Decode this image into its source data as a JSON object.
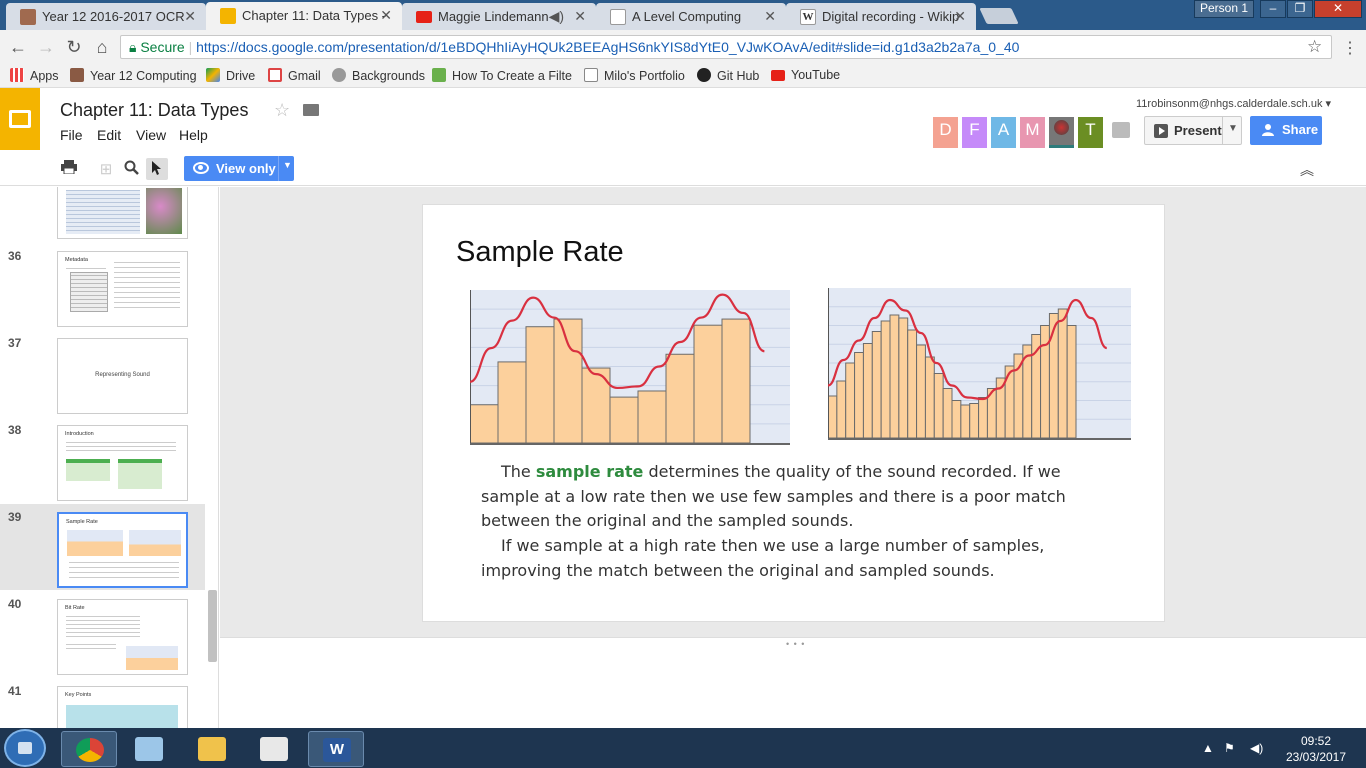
{
  "browser": {
    "tabs": [
      {
        "label": "Year 12 2016-2017 OCR",
        "color": "#a06a4f"
      },
      {
        "label": "Chapter 11: Data Types -",
        "color": "#f4b400",
        "active": true
      },
      {
        "label": "Maggie Lindemann -",
        "color": "#e62117"
      },
      {
        "label": "A Level Computing",
        "color": "#cccccc"
      },
      {
        "label": "Digital recording - Wikip",
        "color": "#ffffff"
      }
    ],
    "profile": "Person 1",
    "url_secure": "Secure",
    "url": "https://docs.google.com/presentation/d/1eBDQHhIiAyHQUk2BEEAgHS6nkYIS8dYtE0_VJwKOAvA/edit#slide=id.g1d3a2b2a7a_0_40",
    "bookmarks": [
      {
        "label": "Apps",
        "icon": "apps-grid-icon"
      },
      {
        "label": "Year 12 Computing",
        "icon": "person-icon"
      },
      {
        "label": "Drive",
        "icon": "drive-icon"
      },
      {
        "label": "Gmail",
        "icon": "gmail-icon"
      },
      {
        "label": "Backgrounds",
        "icon": "globe-icon"
      },
      {
        "label": "How To Create a Filte",
        "icon": "page-icon"
      },
      {
        "label": "Milo's Portfolio",
        "icon": "doc-icon"
      },
      {
        "label": "Git Hub",
        "icon": "github-icon"
      },
      {
        "label": "YouTube",
        "icon": "youtube-icon"
      }
    ]
  },
  "app": {
    "title": "Chapter 11:  Data Types",
    "menus": [
      "File",
      "Edit",
      "View",
      "Help"
    ],
    "user_email": "11robinsonm@nhgs.calderdale.sch.uk",
    "avatars": [
      {
        "letter": "D",
        "color": "#f4a291",
        "underline": "#f4a291"
      },
      {
        "letter": "F",
        "color": "#c58af9",
        "underline": "#c58af9"
      },
      {
        "letter": "A",
        "color": "#6fb8e6",
        "underline": "#6fb8e6"
      },
      {
        "letter": "M",
        "color": "#e896b0",
        "underline": "#e896b0"
      },
      {
        "letter": "",
        "color": "#777777",
        "underline": "#2e7c7c"
      },
      {
        "letter": "T",
        "color": "#6b8e23",
        "underline": "#6b8e23"
      }
    ],
    "present_label": "Present",
    "share_label": "Share",
    "view_only_label": "View only"
  },
  "filmstrip": [
    {
      "num": "",
      "title": "",
      "kind": "images"
    },
    {
      "num": "36",
      "title": "Metadata",
      "kind": "text"
    },
    {
      "num": "37",
      "title": "Representing Sound",
      "kind": "center"
    },
    {
      "num": "38",
      "title": "Introduction",
      "kind": "text"
    },
    {
      "num": "39",
      "title": "Sample Rate",
      "kind": "selected"
    },
    {
      "num": "40",
      "title": "Bit Rate",
      "kind": "text"
    },
    {
      "num": "41",
      "title": "Key Points",
      "kind": "text"
    }
  ],
  "slide": {
    "title": "Sample Rate",
    "paragraph_lines": [
      {
        "before": "The ",
        "bold": "sample rate",
        "after": " determines the quality of the sound recorded. If we",
        "indent": true
      },
      {
        "before": "sample at a low rate then we use few samples and there is a poor match",
        "bold": "",
        "after": "",
        "indent": false
      },
      {
        "before": "between the original and the sampled sounds.",
        "bold": "",
        "after": "",
        "indent": false
      },
      {
        "before": "If we sample at a high rate then we use a large number of samples,",
        "bold": "",
        "after": "",
        "indent": true
      },
      {
        "before": "improving the match between the original and sampled sounds.",
        "bold": "",
        "after": "",
        "indent": false
      }
    ]
  },
  "chart_data": [
    {
      "type": "bar",
      "values": [
        0.25,
        0.53,
        0.76,
        0.81,
        0.49,
        0.3,
        0.34,
        0.58,
        0.77,
        0.81
      ],
      "curve": [
        0.4,
        0.62,
        0.8,
        0.95,
        0.82,
        0.6,
        0.45,
        0.36,
        0.37,
        0.5,
        0.66,
        0.82,
        0.97,
        0.85,
        0.6
      ],
      "ylim": [
        0,
        1
      ],
      "bar_color": "#fcd09c",
      "curve_color": "#d93040"
    },
    {
      "type": "bar",
      "values": [
        0.28,
        0.38,
        0.5,
        0.57,
        0.63,
        0.71,
        0.78,
        0.82,
        0.8,
        0.72,
        0.62,
        0.54,
        0.43,
        0.33,
        0.25,
        0.22,
        0.23,
        0.27,
        0.33,
        0.4,
        0.48,
        0.56,
        0.62,
        0.69,
        0.75,
        0.83,
        0.86,
        0.75
      ],
      "curve": [
        0.35,
        0.52,
        0.65,
        0.8,
        0.92,
        0.85,
        0.7,
        0.5,
        0.35,
        0.27,
        0.26,
        0.33,
        0.45,
        0.55,
        0.62,
        0.78,
        0.92,
        0.8,
        0.6
      ],
      "ylim": [
        0,
        1
      ],
      "bar_color": "#fcd09c",
      "curve_color": "#d93040"
    }
  ],
  "taskbar": {
    "time": "09:52",
    "date": "23/03/2017"
  }
}
